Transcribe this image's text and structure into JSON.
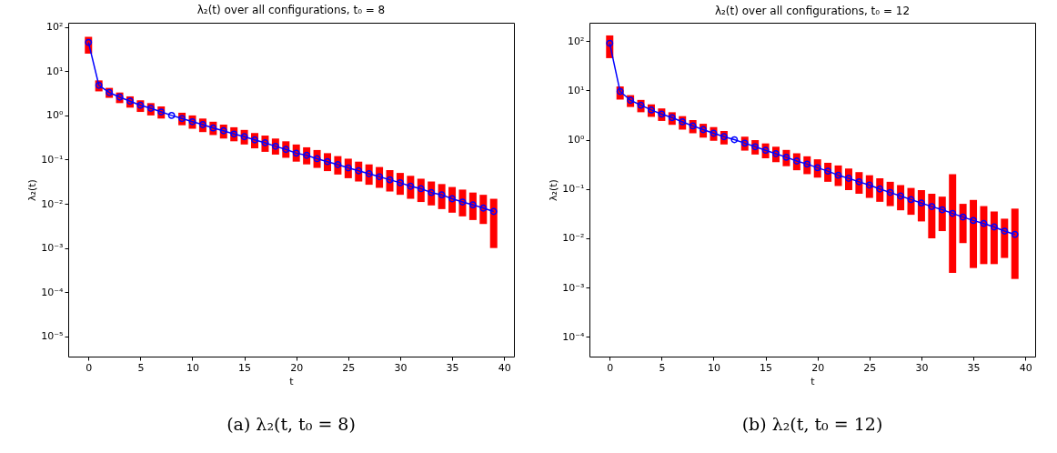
{
  "chart_data": [
    {
      "type": "line",
      "title": "λ₂(t) over all configurations, t₀ = 8",
      "xlabel": "t",
      "ylabel": "λ₂(t)",
      "annotations": [
        "(a) λ₂(t, t₀ = 8)"
      ],
      "log": "y",
      "grid": false,
      "marker": "circle",
      "x": [
        0,
        1,
        2,
        3,
        4,
        5,
        6,
        7,
        8,
        9,
        10,
        11,
        12,
        13,
        14,
        15,
        16,
        17,
        18,
        19,
        20,
        21,
        22,
        23,
        24,
        25,
        26,
        27,
        28,
        29,
        30,
        31,
        32,
        33,
        34,
        35,
        36,
        37,
        38,
        39
      ],
      "xlim": [
        -1.95,
        40.95
      ],
      "xticks": [
        0,
        5,
        10,
        15,
        20,
        25,
        30,
        35,
        40
      ],
      "ylim": [
        3.5e-06,
        125
      ],
      "yticks": [
        {
          "value": 1e-05,
          "label": "10⁻⁵"
        },
        {
          "value": 0.0001,
          "label": "10⁻⁴"
        },
        {
          "value": 0.001,
          "label": "10⁻³"
        },
        {
          "value": 0.01,
          "label": "10⁻²"
        },
        {
          "value": 0.1,
          "label": "10⁻¹"
        },
        {
          "value": 1,
          "label": "10⁰"
        },
        {
          "value": 10,
          "label": "10¹"
        },
        {
          "value": 100,
          "label": "10²"
        }
      ],
      "series": [
        {
          "type": "bar",
          "color": "#ff0000",
          "base": [
            25,
            3.5,
            2.5,
            1.9,
            1.5,
            1.2,
            1.0,
            0.85,
            null,
            0.6,
            0.5,
            0.42,
            0.36,
            0.3,
            0.26,
            0.22,
            0.18,
            0.15,
            0.13,
            0.11,
            0.09,
            0.078,
            0.065,
            0.055,
            0.046,
            0.038,
            0.032,
            0.027,
            0.023,
            0.019,
            0.016,
            0.013,
            0.011,
            0.0092,
            0.0076,
            0.0063,
            0.0052,
            0.0043,
            0.0035,
            0.001
          ],
          "values": [
            35,
            2.7,
            1.7,
            1.4,
            1.2,
            1.0,
            0.9,
            0.75,
            null,
            0.55,
            0.5,
            0.43,
            0.36,
            0.32,
            0.28,
            0.25,
            0.22,
            0.2,
            0.17,
            0.15,
            0.13,
            0.112,
            0.1,
            0.085,
            0.074,
            0.067,
            0.058,
            0.051,
            0.045,
            0.039,
            0.034,
            0.03,
            0.026,
            0.0228,
            0.0204,
            0.0177,
            0.0158,
            0.0137,
            0.0125,
            0.012
          ]
        },
        {
          "color": "#0000ff",
          "values": [
            45,
            4.8,
            3.3,
            2.6,
            2.1,
            1.7,
            1.45,
            1.2,
            1.0,
            0.85,
            0.72,
            0.62,
            0.52,
            0.45,
            0.38,
            0.33,
            0.28,
            0.24,
            0.2,
            0.17,
            0.14,
            0.125,
            0.105,
            0.09,
            0.077,
            0.065,
            0.056,
            0.048,
            0.041,
            0.035,
            0.03,
            0.025,
            0.022,
            0.018,
            0.016,
            0.013,
            0.011,
            0.0095,
            0.008,
            0.0067
          ]
        }
      ]
    },
    {
      "type": "line",
      "title": "λ₂(t) over all configurations, t₀ = 12",
      "xlabel": "t",
      "ylabel": "λ₂(t)",
      "annotations": [
        "(b) λ₂(t, t₀ = 12)"
      ],
      "log": "y",
      "grid": false,
      "marker": "circle",
      "x": [
        0,
        1,
        2,
        3,
        4,
        5,
        6,
        7,
        8,
        9,
        10,
        11,
        12,
        13,
        14,
        15,
        16,
        17,
        18,
        19,
        20,
        21,
        22,
        23,
        24,
        25,
        26,
        27,
        28,
        29,
        30,
        31,
        32,
        33,
        34,
        35,
        36,
        37,
        38,
        39
      ],
      "xlim": [
        -1.95,
        40.95
      ],
      "xticks": [
        0,
        5,
        10,
        15,
        20,
        25,
        30,
        35,
        40
      ],
      "ylim": [
        4e-05,
        235
      ],
      "yticks": [
        {
          "value": 0.0001,
          "label": "10⁻⁴"
        },
        {
          "value": 0.001,
          "label": "10⁻³"
        },
        {
          "value": 0.01,
          "label": "10⁻²"
        },
        {
          "value": 0.1,
          "label": "10⁻¹"
        },
        {
          "value": 1,
          "label": "10⁰"
        },
        {
          "value": 10,
          "label": "10¹"
        },
        {
          "value": 100,
          "label": "10²"
        }
      ],
      "series": [
        {
          "type": "bar",
          "color": "#ff0000",
          "base": [
            45,
            6.5,
            4.6,
            3.6,
            2.9,
            2.4,
            2.0,
            1.6,
            1.35,
            1.1,
            0.95,
            0.8,
            null,
            0.6,
            0.5,
            0.42,
            0.35,
            0.29,
            0.24,
            0.2,
            0.17,
            0.14,
            0.115,
            0.095,
            0.08,
            0.066,
            0.055,
            0.045,
            0.037,
            0.03,
            0.022,
            0.01,
            0.014,
            0.002,
            0.008,
            0.0025,
            0.003,
            0.003,
            0.004,
            0.0015
          ],
          "values": [
            85,
            5.5,
            3.4,
            2.8,
            2.3,
            1.9,
            1.6,
            1.4,
            1.15,
            1.0,
            0.85,
            0.7,
            null,
            0.55,
            0.48,
            0.42,
            0.37,
            0.33,
            0.29,
            0.26,
            0.23,
            0.2,
            0.185,
            0.165,
            0.14,
            0.124,
            0.11,
            0.095,
            0.083,
            0.075,
            0.073,
            0.07,
            0.056,
            0.198,
            0.042,
            0.0575,
            0.042,
            0.032,
            0.021,
            0.0385
          ]
        },
        {
          "color": "#0000ff",
          "values": [
            90,
            9.5,
            6.3,
            5.0,
            4.0,
            3.3,
            2.8,
            2.3,
            1.9,
            1.6,
            1.35,
            1.15,
            1.0,
            0.85,
            0.72,
            0.61,
            0.52,
            0.44,
            0.37,
            0.32,
            0.27,
            0.23,
            0.19,
            0.165,
            0.14,
            0.12,
            0.1,
            0.085,
            0.072,
            0.061,
            0.052,
            0.044,
            0.038,
            0.032,
            0.027,
            0.023,
            0.02,
            0.017,
            0.014,
            0.012
          ]
        }
      ]
    }
  ]
}
